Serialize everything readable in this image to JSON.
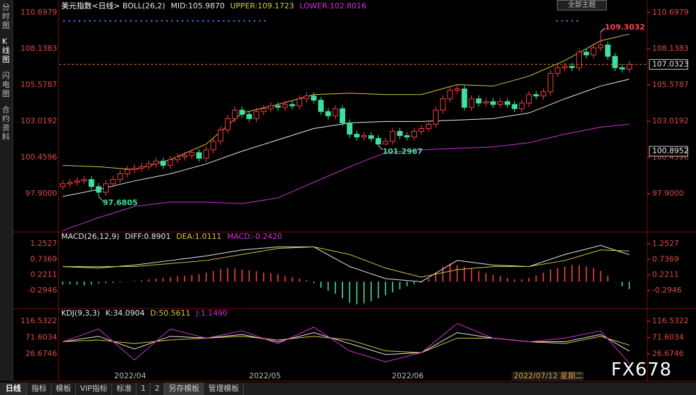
{
  "sidebar": [
    "分时图",
    "K线图",
    "闪电图",
    "合约资料"
  ],
  "theme_button": "全部主题",
  "bottom_bar": {
    "period": "日线",
    "tabs": [
      "指标",
      "模板",
      "VIP指标",
      "标准",
      "1",
      "2",
      "另存模板",
      "管理模板"
    ]
  },
  "watermark": "FX678",
  "chart_data": [
    {
      "type": "candlestick",
      "title": "美元指数<日线>",
      "legend": [
        "BOLL(26,2)",
        "MID:105.9870",
        "UPPER:109.1723",
        "LOWER:102.8016"
      ],
      "open": [
        98.4,
        98.6,
        98.7,
        98.8,
        98.9,
        98.4,
        98.0,
        98.6,
        98.9,
        99.3,
        99.6,
        99.7,
        99.8,
        100.0,
        100.2,
        99.9,
        100.3,
        100.5,
        100.6,
        100.8,
        100.4,
        101.0,
        101.6,
        102.4,
        103.2,
        103.8,
        103.5,
        103.2,
        103.7,
        103.9,
        104.1,
        104.0,
        104.2,
        104.1,
        104.6,
        104.8,
        104.5,
        103.7,
        103.4,
        103.9,
        102.9,
        102.1,
        101.9,
        102.0,
        101.8,
        101.4,
        101.6,
        102.3,
        102.0,
        101.9,
        102.3,
        102.5,
        102.8,
        103.8,
        104.6,
        105.2,
        105.3,
        104.0,
        104.6,
        104.3,
        104.4,
        104.2,
        104.4,
        104.2,
        103.9,
        104.3,
        104.9,
        104.8,
        105.1,
        106.4,
        106.8,
        106.9,
        106.8,
        107.9,
        107.7,
        108.2,
        108.4,
        107.6,
        106.8,
        106.7
      ],
      "high": [
        98.85,
        98.95,
        99.05,
        99.15,
        99.15,
        98.65,
        98.85,
        99.15,
        99.55,
        99.85,
        99.95,
        100.05,
        100.25,
        100.45,
        100.45,
        100.55,
        100.75,
        100.85,
        101.05,
        101.05,
        101.25,
        101.85,
        102.65,
        103.45,
        104.05,
        104.05,
        103.75,
        103.95,
        104.15,
        104.35,
        104.35,
        104.45,
        104.45,
        104.85,
        105.05,
        105.05,
        104.75,
        103.95,
        104.15,
        104.15,
        103.15,
        102.35,
        102.25,
        102.25,
        102.05,
        101.85,
        102.55,
        102.55,
        102.25,
        102.55,
        102.75,
        103.05,
        104.05,
        104.85,
        105.45,
        105.55,
        105.55,
        104.85,
        104.85,
        104.65,
        104.65,
        104.65,
        104.65,
        104.45,
        104.55,
        105.15,
        105.15,
        105.35,
        106.65,
        107.05,
        107.15,
        107.15,
        108.15,
        108.15,
        108.45,
        109.3032,
        108.65,
        107.85,
        107.05,
        107.28
      ],
      "low": [
        98.15,
        98.35,
        98.45,
        98.55,
        98.15,
        97.6805,
        97.75,
        98.35,
        98.65,
        99.05,
        99.35,
        99.45,
        99.55,
        99.75,
        99.65,
        99.65,
        100.05,
        100.25,
        100.35,
        100.15,
        100.15,
        100.75,
        101.35,
        102.15,
        102.95,
        103.25,
        102.95,
        102.95,
        103.45,
        103.65,
        103.75,
        103.75,
        103.85,
        103.85,
        104.35,
        104.25,
        103.45,
        103.15,
        103.15,
        102.65,
        101.85,
        101.65,
        101.65,
        101.55,
        101.2967,
        101.35,
        101.35,
        101.75,
        101.65,
        101.65,
        102.05,
        102.25,
        102.55,
        103.55,
        104.35,
        104.95,
        103.75,
        103.75,
        104.05,
        104.05,
        103.95,
        103.95,
        103.95,
        103.65,
        103.65,
        104.05,
        104.55,
        104.55,
        104.85,
        106.15,
        106.55,
        106.55,
        106.55,
        107.45,
        107.45,
        107.95,
        107.35,
        106.55,
        106.45,
        106.45
      ],
      "close": [
        98.6,
        98.7,
        98.8,
        98.9,
        98.4,
        98.0,
        98.6,
        98.9,
        99.3,
        99.6,
        99.7,
        99.8,
        100.0,
        100.2,
        99.9,
        100.3,
        100.5,
        100.6,
        100.8,
        100.4,
        101.0,
        101.6,
        102.4,
        103.2,
        103.8,
        103.5,
        103.2,
        103.7,
        103.9,
        104.1,
        104.0,
        104.2,
        104.1,
        104.6,
        104.8,
        104.5,
        103.7,
        103.4,
        103.9,
        102.9,
        102.1,
        101.9,
        102.0,
        101.8,
        101.4,
        101.6,
        102.3,
        102.0,
        101.9,
        102.3,
        102.5,
        102.8,
        103.8,
        104.6,
        105.2,
        105.3,
        104.0,
        104.6,
        104.3,
        104.4,
        104.2,
        104.4,
        104.2,
        103.9,
        104.3,
        104.9,
        104.8,
        105.1,
        106.4,
        106.8,
        106.9,
        106.8,
        107.9,
        107.7,
        108.2,
        108.4,
        107.6,
        106.8,
        106.7,
        107.0323
      ],
      "up_color": "#ff3c3c",
      "down_color": "#3ee0a0",
      "series": [
        {
          "color": "#d8c640",
          "x": [
            0,
            5,
            10,
            15,
            20,
            25,
            30,
            35,
            40,
            45,
            50,
            55,
            60,
            65,
            70,
            75,
            79
          ],
          "values": [
            99.9,
            99.8,
            99.6,
            100.3,
            101.4,
            103.6,
            104.2,
            104.9,
            105.0,
            104.9,
            104.9,
            105.6,
            105.5,
            106.2,
            107.3,
            108.7,
            109.1723
          ]
        },
        {
          "color": "#e8e8e8",
          "x": [
            0,
            5,
            10,
            15,
            20,
            25,
            30,
            35,
            40,
            45,
            50,
            55,
            60,
            65,
            70,
            75,
            79
          ],
          "values": [
            97.7,
            98.2,
            98.8,
            99.3,
            100.0,
            100.9,
            101.7,
            102.5,
            102.9,
            103.0,
            103.0,
            103.1,
            103.2,
            103.6,
            104.6,
            105.5,
            105.987
          ]
        },
        {
          "color": "#d030d8",
          "x": [
            0,
            5,
            10,
            15,
            20,
            25,
            30,
            35,
            40,
            45,
            50,
            55,
            60,
            65,
            70,
            75,
            79
          ],
          "values": [
            95.3,
            96.2,
            97.0,
            97.3,
            97.3,
            97.2,
            97.6,
            98.7,
            99.8,
            100.8,
            101.0,
            101.1,
            101.2,
            101.5,
            102.1,
            102.6,
            102.8016
          ]
        }
      ],
      "ylim": [
        95.34,
        110.99
      ],
      "yticks": [
        110.6979,
        108.1383,
        105.5787,
        103.0192,
        100.4596,
        {
          "value": 97.9,
          "label": "97.9000"
        }
      ],
      "xlim": [
        -0.5,
        81.5
      ],
      "xticks": [
        {
          "value": 9.4,
          "label": "2022/04"
        },
        {
          "value": 28.2,
          "label": "2022/05"
        },
        {
          "value": 48.1,
          "label": "2022/06"
        }
      ],
      "last_price": 107.0323,
      "cursor_value": 100.8952,
      "cursor_date": "2022/07/12 星期二",
      "annotations": [
        {
          "text": "109.3032",
          "value": 109.3032,
          "index": 75,
          "color": "#ff4050"
        },
        {
          "text": "101.2967",
          "value": 101.2967,
          "index": 44,
          "color": "#3ee0a0"
        },
        {
          "text": "97.6805",
          "value": 97.6805,
          "index": 5,
          "color": "#3ee0a0"
        }
      ]
    },
    {
      "type": "macd",
      "legend": [
        "MACD(26,12,9)",
        "DIFF:0.8901",
        "DEA:1.0111",
        "MACD:-0.2420"
      ],
      "values": [
        -0.1,
        -0.08,
        -0.1,
        -0.12,
        -0.1,
        -0.06,
        -0.05,
        -0.04,
        -0.02,
        0.0,
        0.03,
        0.05,
        0.08,
        0.1,
        0.12,
        0.15,
        0.18,
        0.2,
        0.22,
        0.25,
        0.3,
        0.35,
        0.42,
        0.45,
        0.44,
        0.4,
        0.38,
        0.35,
        0.3,
        0.28,
        0.25,
        0.2,
        0.15,
        0.1,
        0.05,
        -0.05,
        -0.2,
        -0.3,
        -0.4,
        -0.55,
        -0.7,
        -0.75,
        -0.72,
        -0.65,
        -0.55,
        -0.45,
        -0.35,
        -0.25,
        -0.15,
        -0.08,
        -0.03,
        0.1,
        0.3,
        0.5,
        0.6,
        0.55,
        0.5,
        0.45,
        0.35,
        0.28,
        0.22,
        0.18,
        0.12,
        0.08,
        0.08,
        0.12,
        0.2,
        0.3,
        0.4,
        0.45,
        0.5,
        0.55,
        0.55,
        0.5,
        0.45,
        0.35,
        0.2,
        0.0,
        -0.15,
        -0.242
      ],
      "up_color": "#ff4040",
      "down_color": "#3ee0a0",
      "series": [
        {
          "color": "#e8e8e8",
          "x": [
            0,
            5,
            10,
            15,
            20,
            25,
            30,
            35,
            40,
            45,
            50,
            55,
            60,
            65,
            70,
            75,
            79
          ],
          "values": [
            0.5,
            0.45,
            0.55,
            0.7,
            0.85,
            1.05,
            1.15,
            1.15,
            0.5,
            0.1,
            0.0,
            0.7,
            0.55,
            0.5,
            0.9,
            1.2,
            0.8901
          ]
        },
        {
          "color": "#d8c640",
          "x": [
            0,
            5,
            10,
            15,
            20,
            25,
            30,
            35,
            40,
            45,
            50,
            55,
            60,
            65,
            70,
            75,
            79
          ],
          "values": [
            0.5,
            0.5,
            0.5,
            0.6,
            0.7,
            0.9,
            1.1,
            1.15,
            0.9,
            0.45,
            0.15,
            0.4,
            0.5,
            0.5,
            0.7,
            1.05,
            1.0111
          ]
        }
      ],
      "ylim": [
        -0.868,
        1.597
      ],
      "yticks": [
        1.2527,
        0.7369,
        0.2211,
        -0.2946
      ]
    },
    {
      "type": "line",
      "legend": [
        "KDJ(9,3,3)",
        "K:34.0904",
        "D:50.5611",
        "J:1.1490"
      ],
      "series": [
        {
          "color": "#e8e8e8",
          "x": [
            0,
            5,
            10,
            15,
            20,
            25,
            30,
            35,
            40,
            45,
            50,
            55,
            60,
            65,
            70,
            75,
            79
          ],
          "values": [
            60,
            75,
            40,
            75,
            70,
            80,
            60,
            85,
            55,
            25,
            30,
            85,
            70,
            60,
            60,
            80,
            34.0904
          ]
        },
        {
          "color": "#d8c640",
          "x": [
            0,
            5,
            10,
            15,
            20,
            25,
            30,
            35,
            40,
            45,
            50,
            55,
            60,
            65,
            70,
            75,
            79
          ],
          "values": [
            60,
            65,
            55,
            65,
            70,
            75,
            65,
            75,
            65,
            35,
            30,
            70,
            70,
            60,
            55,
            75,
            50.5611
          ]
        },
        {
          "color": "#d030d8",
          "x": [
            0,
            5,
            10,
            15,
            20,
            25,
            30,
            35,
            40,
            45,
            50,
            55,
            60,
            65,
            70,
            75,
            79
          ],
          "values": [
            60,
            95,
            10,
            95,
            70,
            90,
            55,
            100,
            35,
            5,
            30,
            110,
            70,
            60,
            70,
            90,
            1.149
          ]
        }
      ],
      "ylim": [
        -34.5,
        133.7
      ],
      "yticks": [
        116.5322,
        71.6034,
        26.6746
      ]
    }
  ]
}
